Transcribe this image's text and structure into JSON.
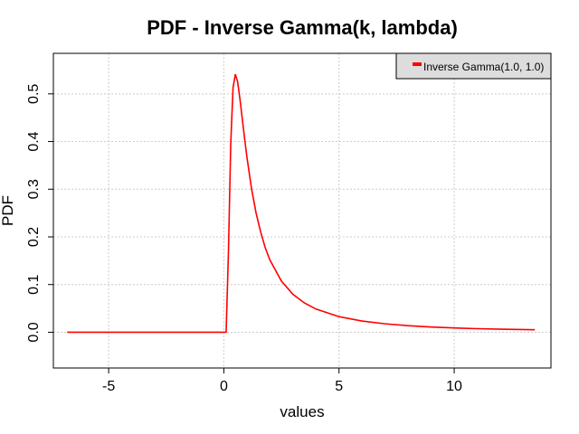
{
  "chart_data": {
    "type": "line",
    "title": "PDF - Inverse Gamma(k, lambda)",
    "xlabel": "values",
    "ylabel": "PDF",
    "xlim": [
      -7.4,
      14.2
    ],
    "ylim": [
      -0.075,
      0.585
    ],
    "xticks": [
      -5,
      0,
      5,
      10
    ],
    "xtick_labels": [
      "-5",
      "0",
      "5",
      "10"
    ],
    "yticks": [
      0.0,
      0.1,
      0.2,
      0.3,
      0.4,
      0.5
    ],
    "ytick_labels": [
      "0.0",
      "0.1",
      "0.2",
      "0.3",
      "0.4",
      "0.5"
    ],
    "grid": true,
    "legend_position": "top-right",
    "series": [
      {
        "name": "Inverse Gamma(1.0, 1.0)",
        "color": "#ff0000",
        "x": [
          -6.8,
          -6.0,
          -5.0,
          -4.0,
          -3.0,
          -2.0,
          -1.0,
          -0.5,
          0.0,
          0.05,
          0.1,
          0.2,
          0.3,
          0.4,
          0.5,
          0.6,
          0.7,
          0.8,
          0.9,
          1.0,
          1.2,
          1.4,
          1.6,
          1.8,
          2.0,
          2.5,
          3.0,
          3.5,
          4.0,
          5.0,
          6.0,
          7.0,
          8.0,
          9.0,
          10.0,
          11.0,
          12.0,
          13.5
        ],
        "y": [
          0.0,
          0.0,
          0.0,
          0.0,
          0.0,
          0.0,
          0.0,
          0.0,
          0.0,
          0.0,
          0.0005,
          0.1684,
          0.3963,
          0.513,
          0.5413,
          0.5246,
          0.489,
          0.4477,
          0.4068,
          0.3679,
          0.3018,
          0.2499,
          0.21,
          0.1768,
          0.1516,
          0.1073,
          0.0796,
          0.0613,
          0.0487,
          0.0327,
          0.0235,
          0.0177,
          0.0138,
          0.011,
          0.009,
          0.0075,
          0.0064,
          0.0053
        ]
      }
    ]
  }
}
